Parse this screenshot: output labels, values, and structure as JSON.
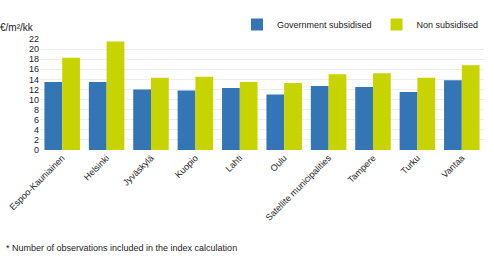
{
  "chart_data": {
    "type": "bar",
    "categories": [
      "Espoo-Kauniainen",
      "Helsinki",
      "Jyväskylä",
      "Kuopio",
      "Lahti",
      "Oulu",
      "Satellite municipalities",
      "Tampere",
      "Turku",
      "Vantaa"
    ],
    "series": [
      {
        "name": "Government subsidised",
        "color": "#3375b5",
        "values": [
          13.5,
          13.5,
          12.0,
          11.8,
          12.3,
          11.0,
          12.7,
          12.5,
          11.5,
          13.8
        ]
      },
      {
        "name": "Non subsidised",
        "color": "#c8d400",
        "values": [
          18.3,
          21.5,
          14.3,
          14.5,
          13.5,
          13.3,
          15.0,
          15.2,
          14.3,
          16.8
        ]
      }
    ],
    "ylabel": "€/m²/kk",
    "annotations": [
      "* Number of observations included in the index calculation"
    ],
    "ylim": [
      0,
      22
    ],
    "yticks": [
      0,
      2,
      4,
      6,
      8,
      10,
      12,
      14,
      16,
      18,
      20,
      22
    ],
    "grid": true,
    "legend": "upper right"
  }
}
